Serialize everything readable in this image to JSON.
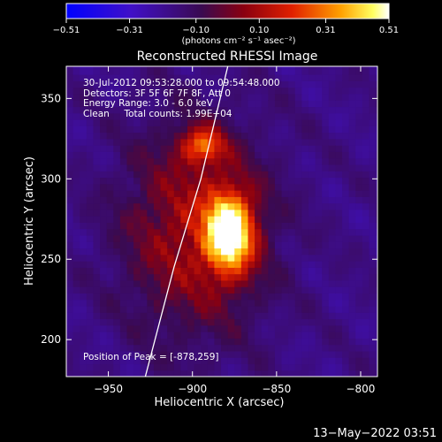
{
  "chart_data": {
    "type": "heatmap",
    "title": "Reconstructed RHESSI Image",
    "xlabel": "Heliocentric X (arcsec)",
    "ylabel": "Heliocentric Y (arcsec)",
    "xlim": [
      -975,
      -790
    ],
    "ylim": [
      177,
      370
    ],
    "x_ticks": [
      -950,
      -900,
      -850,
      -800
    ],
    "y_ticks": [
      200,
      250,
      300,
      350
    ],
    "x_tick_labels": [
      "−950",
      "−900",
      "−850",
      "−800"
    ],
    "y_tick_labels": [
      "200",
      "250",
      "300",
      "350"
    ],
    "colorbar": {
      "range": [
        -0.51,
        0.51
      ],
      "ticks": [
        -0.51,
        -0.31,
        -0.1,
        0.1,
        0.31,
        0.51
      ],
      "tick_labels": [
        "−0.51",
        "−0.31",
        "−0.10",
        "0.10",
        "0.31",
        "0.51"
      ],
      "units_label": "(photons cm⁻² s⁻¹ asec⁻²)",
      "colormap": "blue-purple-red-yellow-white"
    },
    "annotations": [
      "30-Jul-2012 09:53:28.000 to 09:54:48.000",
      "Detectors: 3F 5F 6F 7F 8F, Att 0",
      "Energy Range: 3.0 - 6.0 keV",
      "Clean     Total counts: 1.99E+04"
    ],
    "peak_label": "Position of Peak = [-878,259]",
    "peak": [
      -878,
      259
    ],
    "sources": [
      {
        "x": -878,
        "y": 259,
        "amplitude": 0.51
      },
      {
        "x": -894,
        "y": 321,
        "amplitude": 0.36
      }
    ],
    "limb_line": [
      [
        -928,
        177
      ],
      [
        -911,
        245
      ],
      [
        -895,
        300
      ],
      [
        -879,
        370
      ]
    ]
  },
  "footer": {
    "timestamp": "13−May−2022 03:51"
  },
  "colors": {
    "background": "#000000",
    "text": "#ffffff",
    "limb": "#ffffff"
  }
}
